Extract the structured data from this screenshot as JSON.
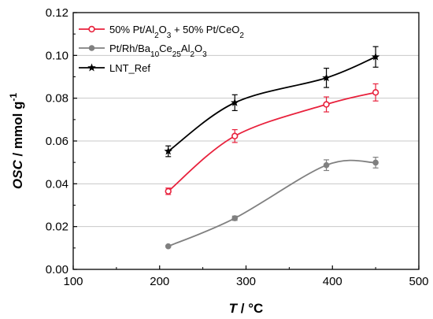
{
  "chart_data": {
    "type": "line",
    "xlabel": {
      "main": "T",
      "rest": " / °C"
    },
    "ylabel": {
      "main": "OSC",
      "rest": " / mmol g",
      "sup": "-1"
    },
    "xlim": [
      100,
      500
    ],
    "ylim": [
      0.0,
      0.12
    ],
    "xticks": [
      100,
      200,
      300,
      400,
      500
    ],
    "yticks": [
      0.0,
      0.02,
      0.04,
      0.06,
      0.08,
      0.1,
      0.12
    ],
    "x_tick_labels": [
      "100",
      "200",
      "300",
      "400",
      "500"
    ],
    "y_tick_labels": [
      "0.00",
      "0.02",
      "0.04",
      "0.06",
      "0.08",
      "0.10",
      "0.12"
    ],
    "grid": "horizontal",
    "legend_position": "top-left",
    "series": [
      {
        "name": "50% Pt/Al2O3 + 50% Pt/CeO2",
        "color": "#e8213c",
        "marker": "open-circle",
        "x": [
          210,
          287,
          393,
          450
        ],
        "y": [
          0.0365,
          0.0623,
          0.0771,
          0.0827
        ],
        "err": [
          0.0015,
          0.003,
          0.0035,
          0.004
        ]
      },
      {
        "name": "Pt/Rh/Ba10Ce25Al2O3",
        "color": "#808080",
        "marker": "filled-circle",
        "x": [
          210,
          287,
          393,
          450
        ],
        "y": [
          0.0108,
          0.0239,
          0.0487,
          0.0499
        ],
        "err": [
          0.0004,
          0.001,
          0.0025,
          0.0025
        ]
      },
      {
        "name": "LNT_Ref",
        "color": "#000000",
        "marker": "star",
        "x": [
          210,
          287,
          393,
          450
        ],
        "y": [
          0.0552,
          0.0779,
          0.0895,
          0.0993
        ],
        "err": [
          0.0025,
          0.0037,
          0.0045,
          0.0048
        ]
      }
    ]
  },
  "legend": {
    "items": [
      {
        "parts": [
          [
            "50% Pt/Al",
            ""
          ],
          [
            "2",
            "sub"
          ],
          [
            "O",
            ""
          ],
          [
            "3",
            "sub"
          ],
          [
            " + 50% Pt/CeO",
            ""
          ],
          [
            "2",
            "sub"
          ]
        ]
      },
      {
        "parts": [
          [
            "Pt/Rh/Ba",
            ""
          ],
          [
            "10",
            "sub"
          ],
          [
            "Ce",
            ""
          ],
          [
            "25",
            "sub"
          ],
          [
            "Al",
            ""
          ],
          [
            "2",
            "sub"
          ],
          [
            "O",
            ""
          ],
          [
            "3",
            "sub"
          ]
        ]
      },
      {
        "parts": [
          [
            "LNT_Ref",
            ""
          ]
        ]
      }
    ]
  }
}
